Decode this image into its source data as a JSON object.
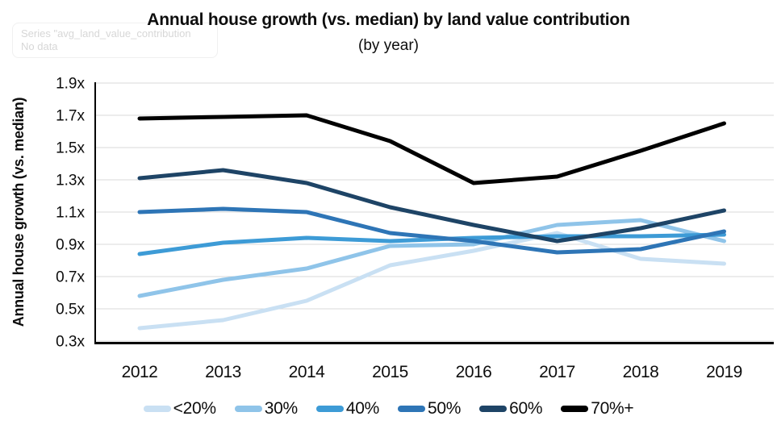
{
  "overlay": {
    "series_message": "Series \"avg_land_value_contribution",
    "no_data_message": "No data"
  },
  "chart_data": {
    "type": "line",
    "title": "Annual house growth (vs. median) by land value contribution",
    "subtitle": "(by year)",
    "ylabel": "Annual house growth (vs. median)",
    "xlabel": "",
    "x": [
      2012,
      2013,
      2014,
      2015,
      2016,
      2017,
      2018,
      2019
    ],
    "ylim": [
      0.3,
      1.9
    ],
    "ytick_step": 0.2,
    "ytick_suffix": "x",
    "grid": true,
    "legend_position": "bottom",
    "gridline_color": "#D9D9D9",
    "axis_color": "#000000",
    "series": [
      {
        "name": "<20%",
        "color": "#C9E0F3",
        "values": [
          0.38,
          0.43,
          0.55,
          0.77,
          0.86,
          0.97,
          0.81,
          0.78
        ]
      },
      {
        "name": "30%",
        "color": "#8FC4E9",
        "values": [
          0.58,
          0.68,
          0.75,
          0.89,
          0.9,
          1.02,
          1.05,
          0.92
        ]
      },
      {
        "name": "40%",
        "color": "#3D9BD6",
        "values": [
          0.84,
          0.91,
          0.94,
          0.92,
          0.94,
          0.95,
          0.95,
          0.96
        ]
      },
      {
        "name": "50%",
        "color": "#2E75B6",
        "values": [
          1.1,
          1.12,
          1.1,
          0.97,
          0.92,
          0.85,
          0.87,
          0.98
        ]
      },
      {
        "name": "60%",
        "color": "#1E4466",
        "values": [
          1.31,
          1.36,
          1.28,
          1.13,
          1.02,
          0.92,
          1.0,
          1.11
        ]
      },
      {
        "name": "70%+",
        "color": "#000000",
        "values": [
          1.68,
          1.69,
          1.7,
          1.54,
          1.28,
          1.32,
          1.48,
          1.65
        ]
      }
    ]
  }
}
